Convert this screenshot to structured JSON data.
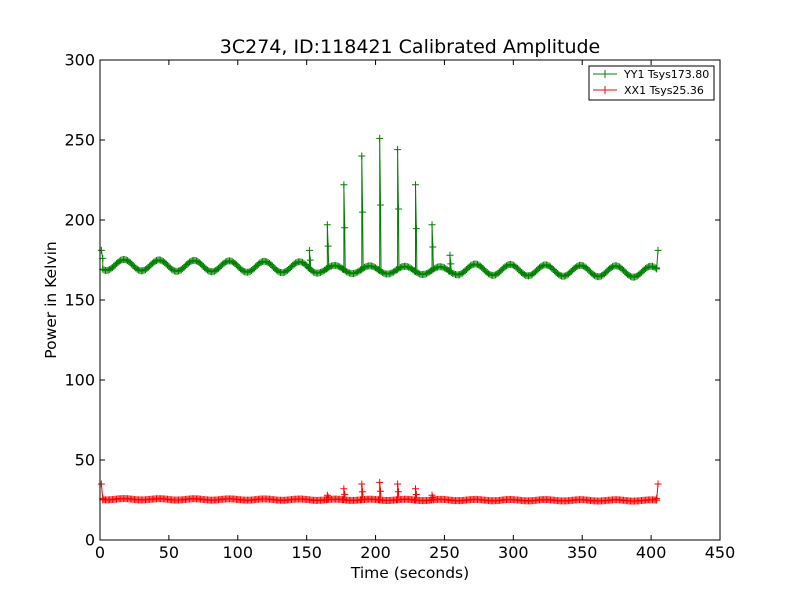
{
  "chart_data": {
    "type": "line",
    "title": "3C274, ID:118421 Calibrated Amplitude",
    "xlabel": "Time (seconds)",
    "ylabel": "Power in Kelvin",
    "xlim": [
      0,
      450
    ],
    "ylim": [
      0,
      300
    ],
    "xticks": [
      "0",
      "50",
      "100",
      "150",
      "200",
      "250",
      "300",
      "350",
      "400",
      "450"
    ],
    "yticks": [
      "0",
      "50",
      "100",
      "150",
      "200",
      "250",
      "300"
    ],
    "grid": false,
    "legend": {
      "placement": "top-right"
    },
    "marker": "+",
    "series": [
      {
        "name": "YY1 Tsys173.80",
        "color": "#008000",
        "base": {
          "x_start": 2,
          "x_end": 404,
          "step": 1,
          "mean": 172,
          "drift_per_second": -0.011,
          "ripple_amplitude": 3.5,
          "ripple_period_seconds": 25.5,
          "ripple_phase_seconds": 11,
          "segments": [
            {
              "from": 157,
              "to": 256,
              "mean": 171,
              "ripple_amplitude": 2.5
            }
          ]
        },
        "points": [
          {
            "x": 1,
            "y": 181
          },
          {
            "x": 2,
            "y": 176
          },
          {
            "x": 404,
            "y": 170
          },
          {
            "x": 405,
            "y": 181
          }
        ],
        "spikes": [
          {
            "x": 152,
            "y": 181
          },
          {
            "x": 165,
            "y": 197
          },
          {
            "x": 177,
            "y": 222
          },
          {
            "x": 190,
            "y": 240
          },
          {
            "x": 203,
            "y": 251
          },
          {
            "x": 216,
            "y": 244
          },
          {
            "x": 229,
            "y": 222
          },
          {
            "x": 241,
            "y": 197
          },
          {
            "x": 254,
            "y": 178
          }
        ]
      },
      {
        "name": "XX1 Tsys25.36",
        "color": "#ff0000",
        "base": {
          "x_start": 2,
          "x_end": 404,
          "step": 1,
          "mean": 25.5,
          "drift_per_second": -0.002,
          "ripple_amplitude": 0.4,
          "ripple_period_seconds": 25.5,
          "ripple_phase_seconds": 11,
          "segments": []
        },
        "points": [
          {
            "x": 1,
            "y": 35
          },
          {
            "x": 2,
            "y": 26
          },
          {
            "x": 404,
            "y": 26
          },
          {
            "x": 405,
            "y": 35
          }
        ],
        "spikes": [
          {
            "x": 165,
            "y": 28
          },
          {
            "x": 177,
            "y": 32
          },
          {
            "x": 190,
            "y": 35
          },
          {
            "x": 203,
            "y": 36
          },
          {
            "x": 216,
            "y": 35
          },
          {
            "x": 229,
            "y": 32
          },
          {
            "x": 241,
            "y": 28
          }
        ]
      }
    ]
  }
}
